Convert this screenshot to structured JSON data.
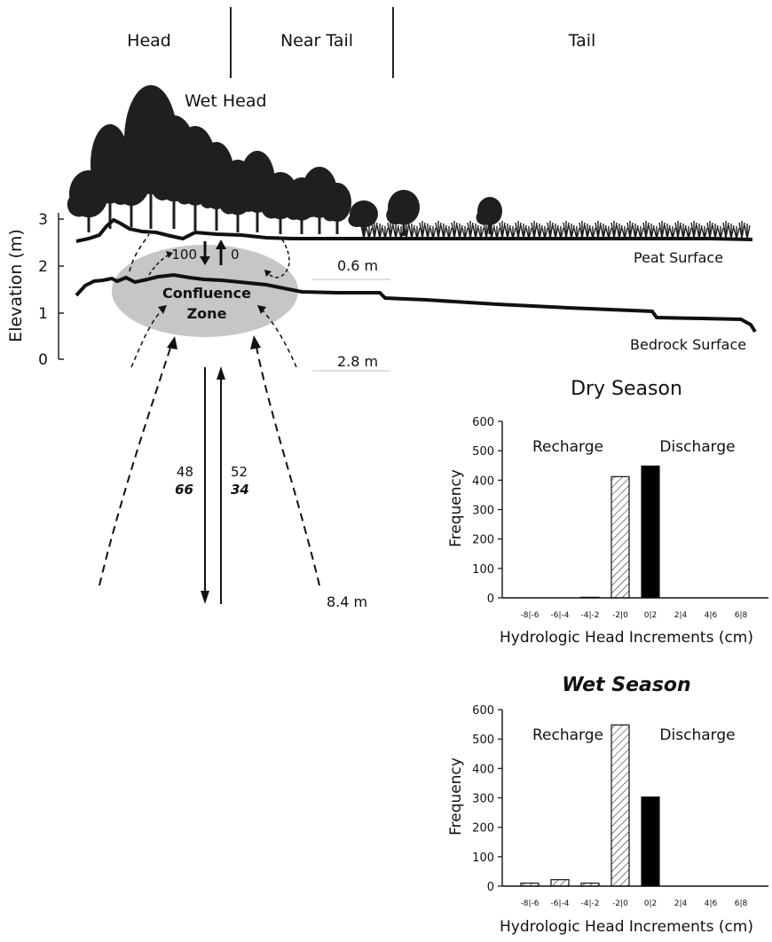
{
  "zones": [
    "Head",
    "Near Tail",
    "Tail"
  ],
  "profile": {
    "wet_head_label": "Wet Head",
    "y_axis_label": "Elevation (m)",
    "y_ticks": [
      "0",
      "1",
      "2",
      "3"
    ],
    "peat_surface_label": "Peat Surface",
    "bedrock_surface_label": "Bedrock Surface",
    "confluence_label_line1": "Confluence",
    "confluence_label_line2": "Zone",
    "down_pct": "100",
    "up_pct": "0",
    "depth_labels": [
      "0.6 m",
      "2.8 m",
      "8.4 m"
    ],
    "deep_down_dry": "48",
    "deep_down_wet": "66",
    "deep_up_dry": "52",
    "deep_up_wet": "34"
  },
  "chart_data": [
    {
      "type": "bar",
      "title": "Dry Season",
      "xlabel": "Hydrologic Head Increments (cm)",
      "ylabel": "Frequency",
      "ylim": [
        0,
        600
      ],
      "y_ticks": [
        "0",
        "100",
        "200",
        "300",
        "400",
        "500",
        "600"
      ],
      "regions": [
        "Recharge",
        "Discharge"
      ],
      "categories": [
        "-8|-6",
        "-6|-4",
        "-4|-2",
        "-2|0",
        "0|2",
        "2|4",
        "4|6",
        "6|8"
      ],
      "values": [
        0,
        0,
        2,
        412,
        448,
        0,
        0,
        0
      ],
      "fills": [
        "hatched",
        "hatched",
        "hatched",
        "hatched",
        "solid",
        "solid",
        "solid",
        "solid"
      ]
    },
    {
      "type": "bar",
      "title": "Wet Season",
      "xlabel": "Hydrologic Head Increments (cm)",
      "ylabel": "Frequency",
      "ylim": [
        0,
        600
      ],
      "y_ticks": [
        "0",
        "100",
        "200",
        "300",
        "400",
        "500",
        "600"
      ],
      "regions": [
        "Recharge",
        "Discharge"
      ],
      "categories": [
        "-8|-6",
        "-6|-4",
        "-4|-2",
        "-2|0",
        "0|2",
        "2|4",
        "4|6",
        "6|8"
      ],
      "values": [
        10,
        22,
        10,
        548,
        303,
        0,
        0,
        0
      ],
      "fills": [
        "hatched",
        "hatched",
        "hatched",
        "hatched",
        "solid",
        "solid",
        "solid",
        "solid"
      ]
    }
  ]
}
